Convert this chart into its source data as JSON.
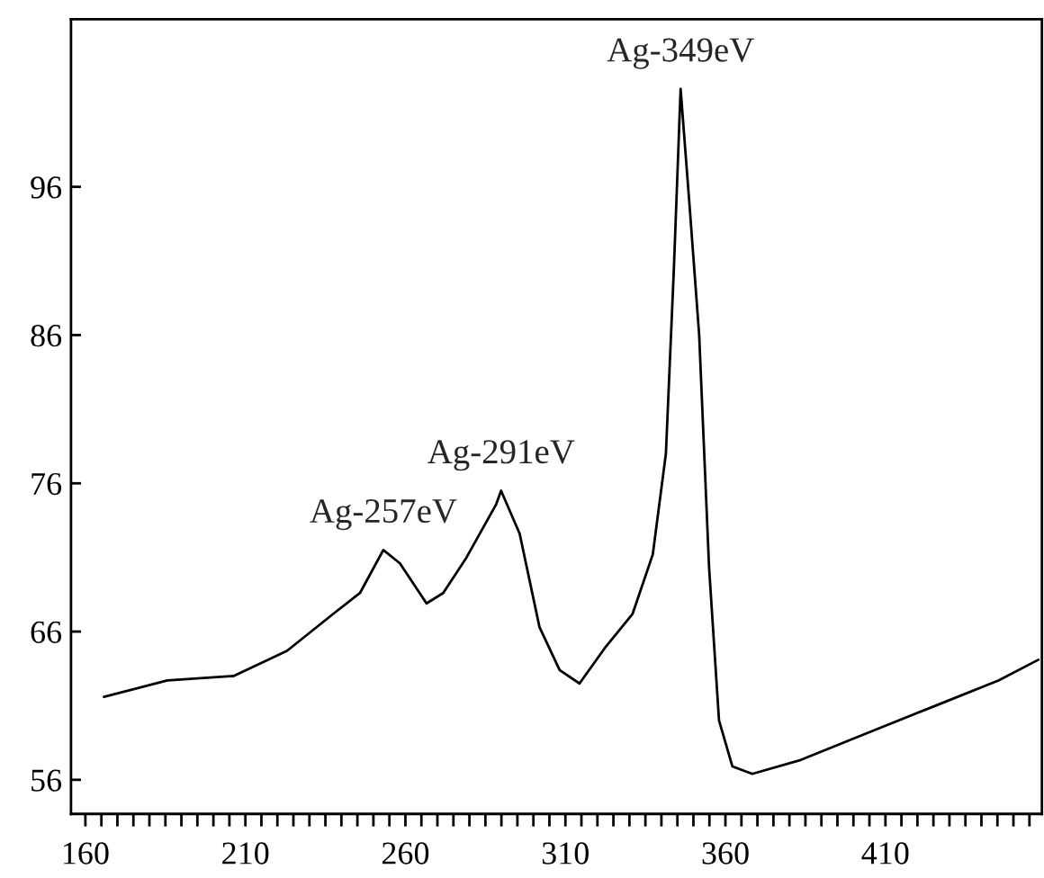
{
  "chart_data": {
    "type": "line",
    "x": [
      165.8,
      185.6,
      206.3,
      223,
      237.5,
      245.8,
      253.1,
      258.3,
      266.6,
      271.8,
      279.1,
      288.4,
      289.9,
      295.7,
      301.9,
      308.2,
      314.4,
      322.7,
      331,
      337.3,
      341.4,
      343.9,
      346.0,
      348.7,
      351.8,
      354.9,
      358.0,
      362.2,
      368.4,
      383.0,
      403.7,
      424.5,
      445.3,
      457.8
    ],
    "series": [
      {
        "color": "#000000",
        "values": [
          61.6,
          62.7,
          63.0,
          64.7,
          67.2,
          68.6,
          71.5,
          70.6,
          67.9,
          68.6,
          71.0,
          74.6,
          75.5,
          72.6,
          66.3,
          63.4,
          62.5,
          65.0,
          67.2,
          71.2,
          78.0,
          90.5,
          102.6,
          95.0,
          86.0,
          70.3,
          60.0,
          56.9,
          56.4,
          57.3,
          59.1,
          60.9,
          62.7,
          64.1
        ]
      }
    ],
    "xlim": [
      155.5,
      458.9
    ],
    "ylim": [
      53.7,
      107.3
    ],
    "xticks": [
      160,
      {
        "value": 165,
        "label": null
      },
      {
        "value": 170,
        "label": null
      },
      {
        "value": 175,
        "label": null
      },
      {
        "value": 180,
        "label": null
      },
      {
        "value": 185,
        "label": null
      },
      {
        "value": 190,
        "label": null
      },
      {
        "value": 195,
        "label": null
      },
      {
        "value": 200,
        "label": null
      },
      {
        "value": 205,
        "label": null
      },
      210,
      {
        "value": 215,
        "label": null
      },
      {
        "value": 220,
        "label": null
      },
      {
        "value": 225,
        "label": null
      },
      {
        "value": 230,
        "label": null
      },
      {
        "value": 235,
        "label": null
      },
      {
        "value": 240,
        "label": null
      },
      {
        "value": 245,
        "label": null
      },
      {
        "value": 250,
        "label": null
      },
      {
        "value": 255,
        "label": null
      },
      260,
      {
        "value": 265,
        "label": null
      },
      {
        "value": 270,
        "label": null
      },
      {
        "value": 275,
        "label": null
      },
      {
        "value": 280,
        "label": null
      },
      {
        "value": 285,
        "label": null
      },
      {
        "value": 290,
        "label": null
      },
      {
        "value": 295,
        "label": null
      },
      {
        "value": 300,
        "label": null
      },
      {
        "value": 305,
        "label": null
      },
      310,
      {
        "value": 315,
        "label": null
      },
      {
        "value": 320,
        "label": null
      },
      {
        "value": 325,
        "label": null
      },
      {
        "value": 330,
        "label": null
      },
      {
        "value": 335,
        "label": null
      },
      {
        "value": 340,
        "label": null
      },
      {
        "value": 345,
        "label": null
      },
      {
        "value": 350,
        "label": null
      },
      {
        "value": 355,
        "label": null
      },
      360,
      {
        "value": 365,
        "label": null
      },
      {
        "value": 370,
        "label": null
      },
      {
        "value": 375,
        "label": null
      },
      {
        "value": 380,
        "label": null
      },
      {
        "value": 385,
        "label": null
      },
      {
        "value": 390,
        "label": null
      },
      {
        "value": 395,
        "label": null
      },
      {
        "value": 400,
        "label": null
      },
      {
        "value": 405,
        "label": null
      },
      410,
      {
        "value": 415,
        "label": null
      },
      {
        "value": 420,
        "label": null
      },
      {
        "value": 425,
        "label": null
      },
      {
        "value": 430,
        "label": null
      },
      {
        "value": 435,
        "label": null
      },
      {
        "value": 440,
        "label": null
      },
      {
        "value": 445,
        "label": null
      },
      {
        "value": 450,
        "label": null
      },
      {
        "value": 455,
        "label": null
      }
    ],
    "yticks": [
      56,
      66,
      76,
      86,
      96
    ],
    "annotations": [
      {
        "text": "Ag-257eV",
        "x": 253.1,
        "y": 71.5
      },
      {
        "text": "Ag-291eV",
        "x": 289.9,
        "y": 75.5
      },
      {
        "text": "Ag-349eV",
        "x": 346.0,
        "y": 102.6
      }
    ],
    "grid": false,
    "legend": false,
    "marker": "none",
    "line_style": "solid"
  }
}
